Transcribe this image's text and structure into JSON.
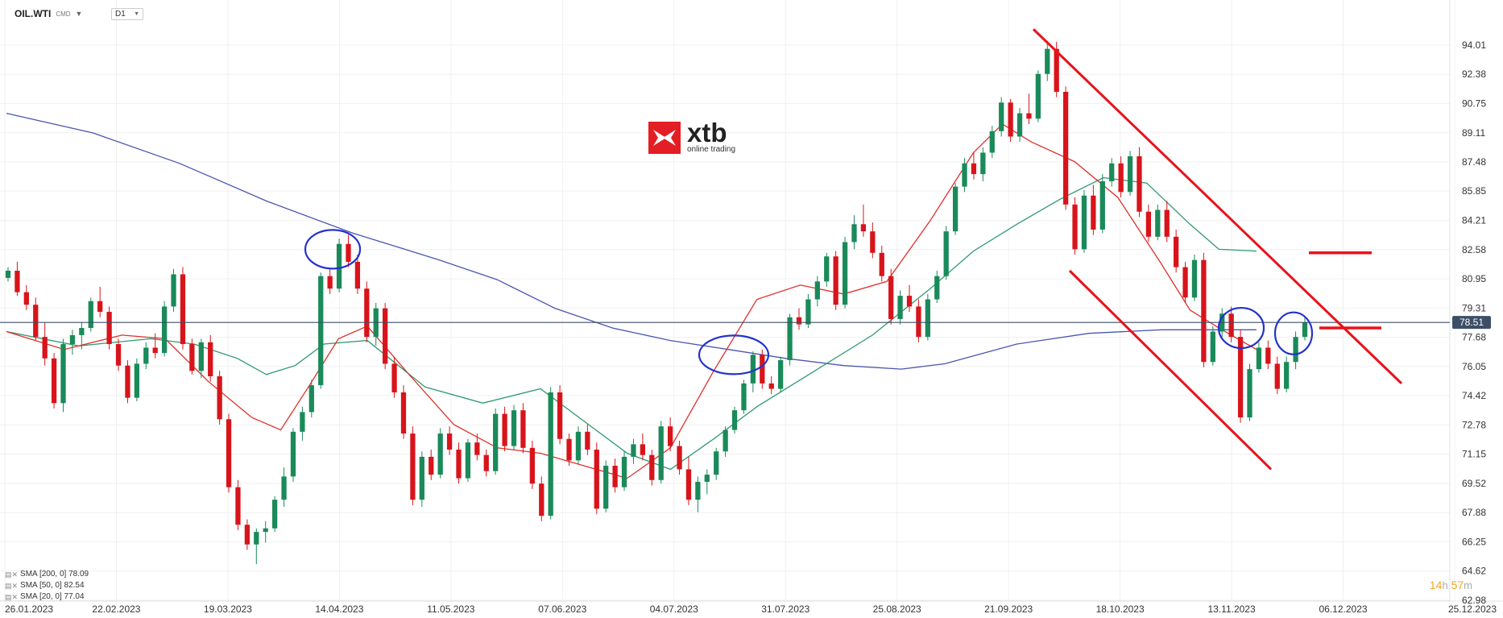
{
  "header": {
    "symbol": "OIL.WTI",
    "source": "CMD",
    "timeframe": "D1"
  },
  "logo": {
    "word": "xtb",
    "tagline": "online trading",
    "color": "#e31e24"
  },
  "timer": {
    "hours": "14",
    "h_unit": "h",
    "minutes": "57",
    "m_unit": "m"
  },
  "legend": [
    {
      "label": "SMA [200, 0] 78.09"
    },
    {
      "label": "SMA [50, 0] 82.54"
    },
    {
      "label": "SMA [20, 0] 77.04"
    }
  ],
  "colors": {
    "up": "#1a8a5a",
    "down": "#d8141b",
    "sma200": "#4a56b0",
    "sma50": "#2e9a6e",
    "sma20": "#e0302a",
    "annot": "#e8121b",
    "circle": "#2233cc",
    "hline": "#3d4f66"
  },
  "chart_data": {
    "type": "candlestick",
    "y_ticks": [
      "94.01",
      "92.38",
      "90.75",
      "89.11",
      "87.48",
      "85.85",
      "84.21",
      "82.58",
      "80.95",
      "79.31",
      "77.68",
      "76.05",
      "74.42",
      "72.78",
      "71.15",
      "69.52",
      "67.88",
      "66.25",
      "64.62",
      "62.98"
    ],
    "y_range": [
      62.98,
      94.01
    ],
    "x_ticks": [
      "26.01.2023",
      "22.02.2023",
      "19.03.2023",
      "14.04.2023",
      "11.05.2023",
      "07.06.2023",
      "04.07.2023",
      "31.07.2023",
      "25.08.2023",
      "21.09.2023",
      "18.10.2023",
      "13.11.2023",
      "06.12.2023",
      "25.12.2023"
    ],
    "current_price": "78.51",
    "series": [
      {
        "name": "SMA [200, 0]",
        "points": [
          [
            0,
            90.2
          ],
          [
            0.06,
            89.1
          ],
          [
            0.12,
            87.4
          ],
          [
            0.18,
            85.3
          ],
          [
            0.24,
            83.5
          ],
          [
            0.3,
            82.0
          ],
          [
            0.34,
            80.9
          ],
          [
            0.38,
            79.3
          ],
          [
            0.42,
            78.2
          ],
          [
            0.46,
            77.5
          ],
          [
            0.5,
            77.0
          ],
          [
            0.54,
            76.5
          ],
          [
            0.58,
            76.1
          ],
          [
            0.62,
            75.9
          ],
          [
            0.65,
            76.2
          ],
          [
            0.7,
            77.3
          ],
          [
            0.75,
            77.9
          ],
          [
            0.8,
            78.1
          ],
          [
            0.84,
            78.1
          ],
          [
            0.866,
            78.1
          ]
        ]
      },
      {
        "name": "SMA [50, 0]",
        "points": [
          [
            0,
            78.0
          ],
          [
            0.05,
            77.2
          ],
          [
            0.1,
            77.6
          ],
          [
            0.13,
            77.3
          ],
          [
            0.16,
            76.5
          ],
          [
            0.18,
            75.6
          ],
          [
            0.2,
            76.1
          ],
          [
            0.22,
            77.3
          ],
          [
            0.25,
            77.5
          ],
          [
            0.29,
            74.9
          ],
          [
            0.33,
            74.0
          ],
          [
            0.37,
            74.8
          ],
          [
            0.4,
            73.0
          ],
          [
            0.43,
            71.2
          ],
          [
            0.46,
            70.3
          ],
          [
            0.49,
            72.0
          ],
          [
            0.52,
            73.8
          ],
          [
            0.56,
            75.8
          ],
          [
            0.6,
            77.8
          ],
          [
            0.64,
            80.4
          ],
          [
            0.67,
            82.5
          ],
          [
            0.7,
            84.0
          ],
          [
            0.73,
            85.4
          ],
          [
            0.76,
            86.6
          ],
          [
            0.79,
            86.3
          ],
          [
            0.82,
            84.0
          ],
          [
            0.84,
            82.6
          ],
          [
            0.866,
            82.5
          ]
        ]
      },
      {
        "name": "SMA [20, 0]",
        "points": [
          [
            0,
            78.0
          ],
          [
            0.04,
            77.0
          ],
          [
            0.08,
            77.8
          ],
          [
            0.11,
            77.6
          ],
          [
            0.14,
            75.2
          ],
          [
            0.17,
            73.2
          ],
          [
            0.19,
            72.5
          ],
          [
            0.21,
            75.0
          ],
          [
            0.23,
            77.6
          ],
          [
            0.25,
            78.3
          ],
          [
            0.28,
            75.5
          ],
          [
            0.31,
            72.8
          ],
          [
            0.34,
            71.5
          ],
          [
            0.37,
            71.2
          ],
          [
            0.4,
            70.5
          ],
          [
            0.43,
            69.8
          ],
          [
            0.46,
            71.5
          ],
          [
            0.49,
            75.8
          ],
          [
            0.52,
            79.8
          ],
          [
            0.55,
            80.6
          ],
          [
            0.58,
            80.1
          ],
          [
            0.61,
            80.8
          ],
          [
            0.64,
            84.2
          ],
          [
            0.67,
            88.0
          ],
          [
            0.69,
            89.6
          ],
          [
            0.71,
            88.6
          ],
          [
            0.74,
            87.5
          ],
          [
            0.77,
            85.5
          ],
          [
            0.8,
            81.8
          ],
          [
            0.82,
            79.2
          ],
          [
            0.84,
            78.2
          ],
          [
            0.866,
            77.0
          ]
        ]
      }
    ],
    "candles": [
      [
        81.0,
        81.6,
        80.8,
        81.4
      ],
      [
        81.4,
        81.9,
        80.0,
        80.2
      ],
      [
        80.2,
        80.6,
        79.2,
        79.5
      ],
      [
        79.5,
        79.9,
        77.5,
        77.7
      ],
      [
        77.7,
        78.5,
        76.1,
        76.5
      ],
      [
        76.5,
        76.8,
        73.7,
        74.0
      ],
      [
        74.0,
        77.6,
        73.5,
        77.3
      ],
      [
        77.3,
        78.1,
        76.7,
        77.8
      ],
      [
        77.8,
        78.5,
        77.0,
        78.2
      ],
      [
        78.2,
        79.9,
        78.0,
        79.7
      ],
      [
        79.7,
        80.5,
        78.8,
        79.1
      ],
      [
        79.1,
        79.4,
        77.0,
        77.3
      ],
      [
        77.3,
        77.6,
        75.8,
        76.1
      ],
      [
        76.1,
        76.4,
        74.0,
        74.3
      ],
      [
        74.3,
        76.5,
        74.1,
        76.2
      ],
      [
        76.2,
        77.4,
        75.9,
        77.1
      ],
      [
        77.1,
        77.9,
        76.5,
        76.8
      ],
      [
        76.8,
        79.7,
        76.6,
        79.4
      ],
      [
        79.4,
        81.5,
        79.1,
        81.2
      ],
      [
        81.2,
        81.6,
        77.0,
        77.3
      ],
      [
        77.3,
        77.6,
        75.6,
        75.8
      ],
      [
        75.8,
        77.6,
        75.4,
        77.4
      ],
      [
        77.4,
        77.8,
        75.2,
        75.5
      ],
      [
        75.5,
        75.8,
        72.8,
        73.1
      ],
      [
        73.1,
        73.4,
        69.0,
        69.3
      ],
      [
        69.3,
        69.7,
        66.9,
        67.2
      ],
      [
        67.2,
        67.5,
        65.8,
        66.1
      ],
      [
        66.1,
        67.0,
        65.0,
        66.8
      ],
      [
        66.8,
        67.4,
        66.2,
        67.0
      ],
      [
        67.0,
        68.8,
        66.8,
        68.6
      ],
      [
        68.6,
        70.4,
        68.2,
        69.9
      ],
      [
        69.9,
        72.6,
        69.6,
        72.4
      ],
      [
        72.4,
        73.8,
        71.9,
        73.5
      ],
      [
        73.5,
        75.3,
        73.2,
        75.0
      ],
      [
        75.0,
        81.3,
        74.8,
        81.1
      ],
      [
        81.1,
        81.5,
        80.1,
        80.4
      ],
      [
        80.4,
        83.2,
        80.2,
        82.9
      ],
      [
        82.9,
        83.4,
        81.6,
        81.9
      ],
      [
        81.9,
        82.3,
        80.1,
        80.4
      ],
      [
        80.4,
        80.8,
        77.4,
        77.7
      ],
      [
        77.7,
        79.6,
        77.2,
        79.3
      ],
      [
        79.3,
        79.6,
        75.9,
        76.2
      ],
      [
        76.2,
        76.6,
        74.3,
        74.6
      ],
      [
        74.6,
        75.0,
        72.0,
        72.3
      ],
      [
        72.3,
        72.7,
        68.3,
        68.6
      ],
      [
        68.6,
        71.3,
        68.2,
        71.0
      ],
      [
        71.0,
        71.4,
        69.7,
        70.0
      ],
      [
        70.0,
        72.6,
        69.8,
        72.3
      ],
      [
        72.3,
        72.7,
        71.1,
        71.4
      ],
      [
        71.4,
        71.8,
        69.5,
        69.8
      ],
      [
        69.8,
        72.0,
        69.6,
        71.8
      ],
      [
        71.8,
        72.3,
        70.8,
        71.1
      ],
      [
        71.1,
        71.4,
        69.9,
        70.2
      ],
      [
        70.2,
        73.7,
        70.0,
        73.4
      ],
      [
        73.4,
        73.8,
        71.3,
        71.6
      ],
      [
        71.6,
        73.9,
        71.4,
        73.6
      ],
      [
        73.6,
        74.0,
        71.2,
        71.5
      ],
      [
        71.5,
        71.9,
        69.2,
        69.5
      ],
      [
        69.5,
        69.9,
        67.4,
        67.7
      ],
      [
        67.7,
        74.9,
        67.5,
        74.6
      ],
      [
        74.6,
        75.0,
        71.7,
        72.0
      ],
      [
        72.0,
        72.3,
        70.5,
        70.8
      ],
      [
        70.8,
        72.7,
        70.6,
        72.4
      ],
      [
        72.4,
        72.8,
        71.1,
        71.4
      ],
      [
        71.4,
        71.8,
        67.8,
        68.1
      ],
      [
        68.1,
        70.8,
        67.9,
        70.5
      ],
      [
        70.5,
        70.9,
        69.0,
        69.3
      ],
      [
        69.3,
        71.3,
        69.1,
        71.0
      ],
      [
        71.0,
        72.0,
        70.6,
        71.7
      ],
      [
        71.7,
        72.3,
        70.8,
        71.1
      ],
      [
        71.1,
        71.4,
        69.4,
        69.7
      ],
      [
        69.7,
        73.0,
        69.5,
        72.7
      ],
      [
        72.7,
        73.2,
        71.3,
        71.6
      ],
      [
        71.6,
        71.9,
        70.0,
        70.3
      ],
      [
        70.3,
        71.0,
        68.3,
        68.6
      ],
      [
        68.6,
        69.9,
        67.9,
        69.6
      ],
      [
        69.6,
        70.3,
        68.9,
        70.0
      ],
      [
        70.0,
        71.5,
        69.7,
        71.3
      ],
      [
        71.3,
        72.7,
        71.0,
        72.5
      ],
      [
        72.5,
        73.8,
        72.3,
        73.6
      ],
      [
        73.6,
        75.3,
        73.4,
        75.1
      ],
      [
        75.1,
        76.9,
        74.6,
        76.7
      ],
      [
        76.7,
        77.0,
        74.8,
        75.1
      ],
      [
        75.1,
        75.5,
        74.5,
        74.8
      ],
      [
        74.8,
        76.6,
        74.6,
        76.4
      ],
      [
        76.4,
        79.0,
        76.1,
        78.8
      ],
      [
        78.8,
        79.3,
        78.1,
        78.4
      ],
      [
        78.4,
        80.1,
        78.2,
        79.8
      ],
      [
        79.8,
        81.1,
        79.4,
        80.8
      ],
      [
        80.8,
        82.4,
        80.5,
        82.2
      ],
      [
        82.2,
        82.5,
        79.2,
        79.5
      ],
      [
        79.5,
        83.3,
        79.3,
        83.0
      ],
      [
        83.0,
        84.5,
        82.6,
        84.0
      ],
      [
        84.0,
        85.1,
        83.3,
        83.6
      ],
      [
        83.6,
        84.1,
        82.1,
        82.4
      ],
      [
        82.4,
        82.8,
        80.8,
        81.1
      ],
      [
        81.1,
        81.5,
        78.4,
        78.7
      ],
      [
        78.7,
        80.3,
        78.4,
        80.0
      ],
      [
        80.0,
        80.6,
        79.1,
        79.4
      ],
      [
        79.4,
        79.8,
        77.4,
        77.7
      ],
      [
        77.7,
        80.1,
        77.5,
        79.8
      ],
      [
        79.8,
        81.4,
        79.6,
        81.1
      ],
      [
        81.1,
        83.9,
        80.9,
        83.6
      ],
      [
        83.6,
        86.3,
        83.4,
        86.1
      ],
      [
        86.1,
        87.7,
        85.8,
        87.4
      ],
      [
        87.4,
        88.0,
        86.5,
        86.8
      ],
      [
        86.8,
        88.3,
        86.4,
        88.0
      ],
      [
        88.0,
        89.5,
        87.7,
        89.2
      ],
      [
        89.2,
        91.1,
        88.9,
        90.8
      ],
      [
        90.8,
        91.0,
        88.6,
        88.9
      ],
      [
        88.9,
        90.5,
        88.6,
        90.2
      ],
      [
        90.2,
        91.3,
        89.6,
        89.9
      ],
      [
        89.9,
        92.6,
        89.7,
        92.4
      ],
      [
        92.4,
        94.1,
        92.0,
        93.8
      ],
      [
        93.8,
        94.2,
        91.1,
        91.4
      ],
      [
        91.4,
        91.7,
        84.8,
        85.1
      ],
      [
        85.1,
        85.5,
        82.3,
        82.6
      ],
      [
        82.6,
        85.9,
        82.4,
        85.6
      ],
      [
        85.6,
        86.2,
        83.4,
        83.7
      ],
      [
        83.7,
        86.8,
        83.5,
        86.4
      ],
      [
        86.4,
        87.7,
        86.1,
        87.4
      ],
      [
        87.4,
        87.8,
        85.5,
        85.8
      ],
      [
        85.8,
        88.1,
        85.6,
        87.8
      ],
      [
        87.8,
        88.3,
        84.4,
        84.7
      ],
      [
        84.7,
        85.1,
        83.0,
        83.3
      ],
      [
        83.3,
        85.1,
        83.1,
        84.8
      ],
      [
        84.8,
        85.3,
        83.0,
        83.3
      ],
      [
        83.3,
        83.7,
        81.3,
        81.6
      ],
      [
        81.6,
        81.9,
        79.6,
        79.9
      ],
      [
        79.9,
        82.3,
        79.7,
        82.0
      ],
      [
        82.0,
        82.4,
        76.0,
        76.3
      ],
      [
        76.3,
        78.3,
        76.1,
        78.0
      ],
      [
        78.0,
        79.3,
        77.7,
        79.0
      ],
      [
        79.0,
        79.4,
        77.4,
        77.7
      ],
      [
        77.7,
        78.1,
        72.9,
        73.2
      ],
      [
        73.2,
        76.2,
        73.0,
        75.9
      ],
      [
        75.9,
        77.4,
        75.7,
        77.1
      ],
      [
        77.1,
        77.5,
        75.9,
        76.2
      ],
      [
        76.2,
        76.6,
        74.5,
        74.8
      ],
      [
        74.8,
        76.6,
        74.6,
        76.3
      ],
      [
        76.3,
        78.0,
        75.9,
        77.7
      ],
      [
        77.7,
        78.8,
        77.5,
        78.5
      ]
    ]
  }
}
